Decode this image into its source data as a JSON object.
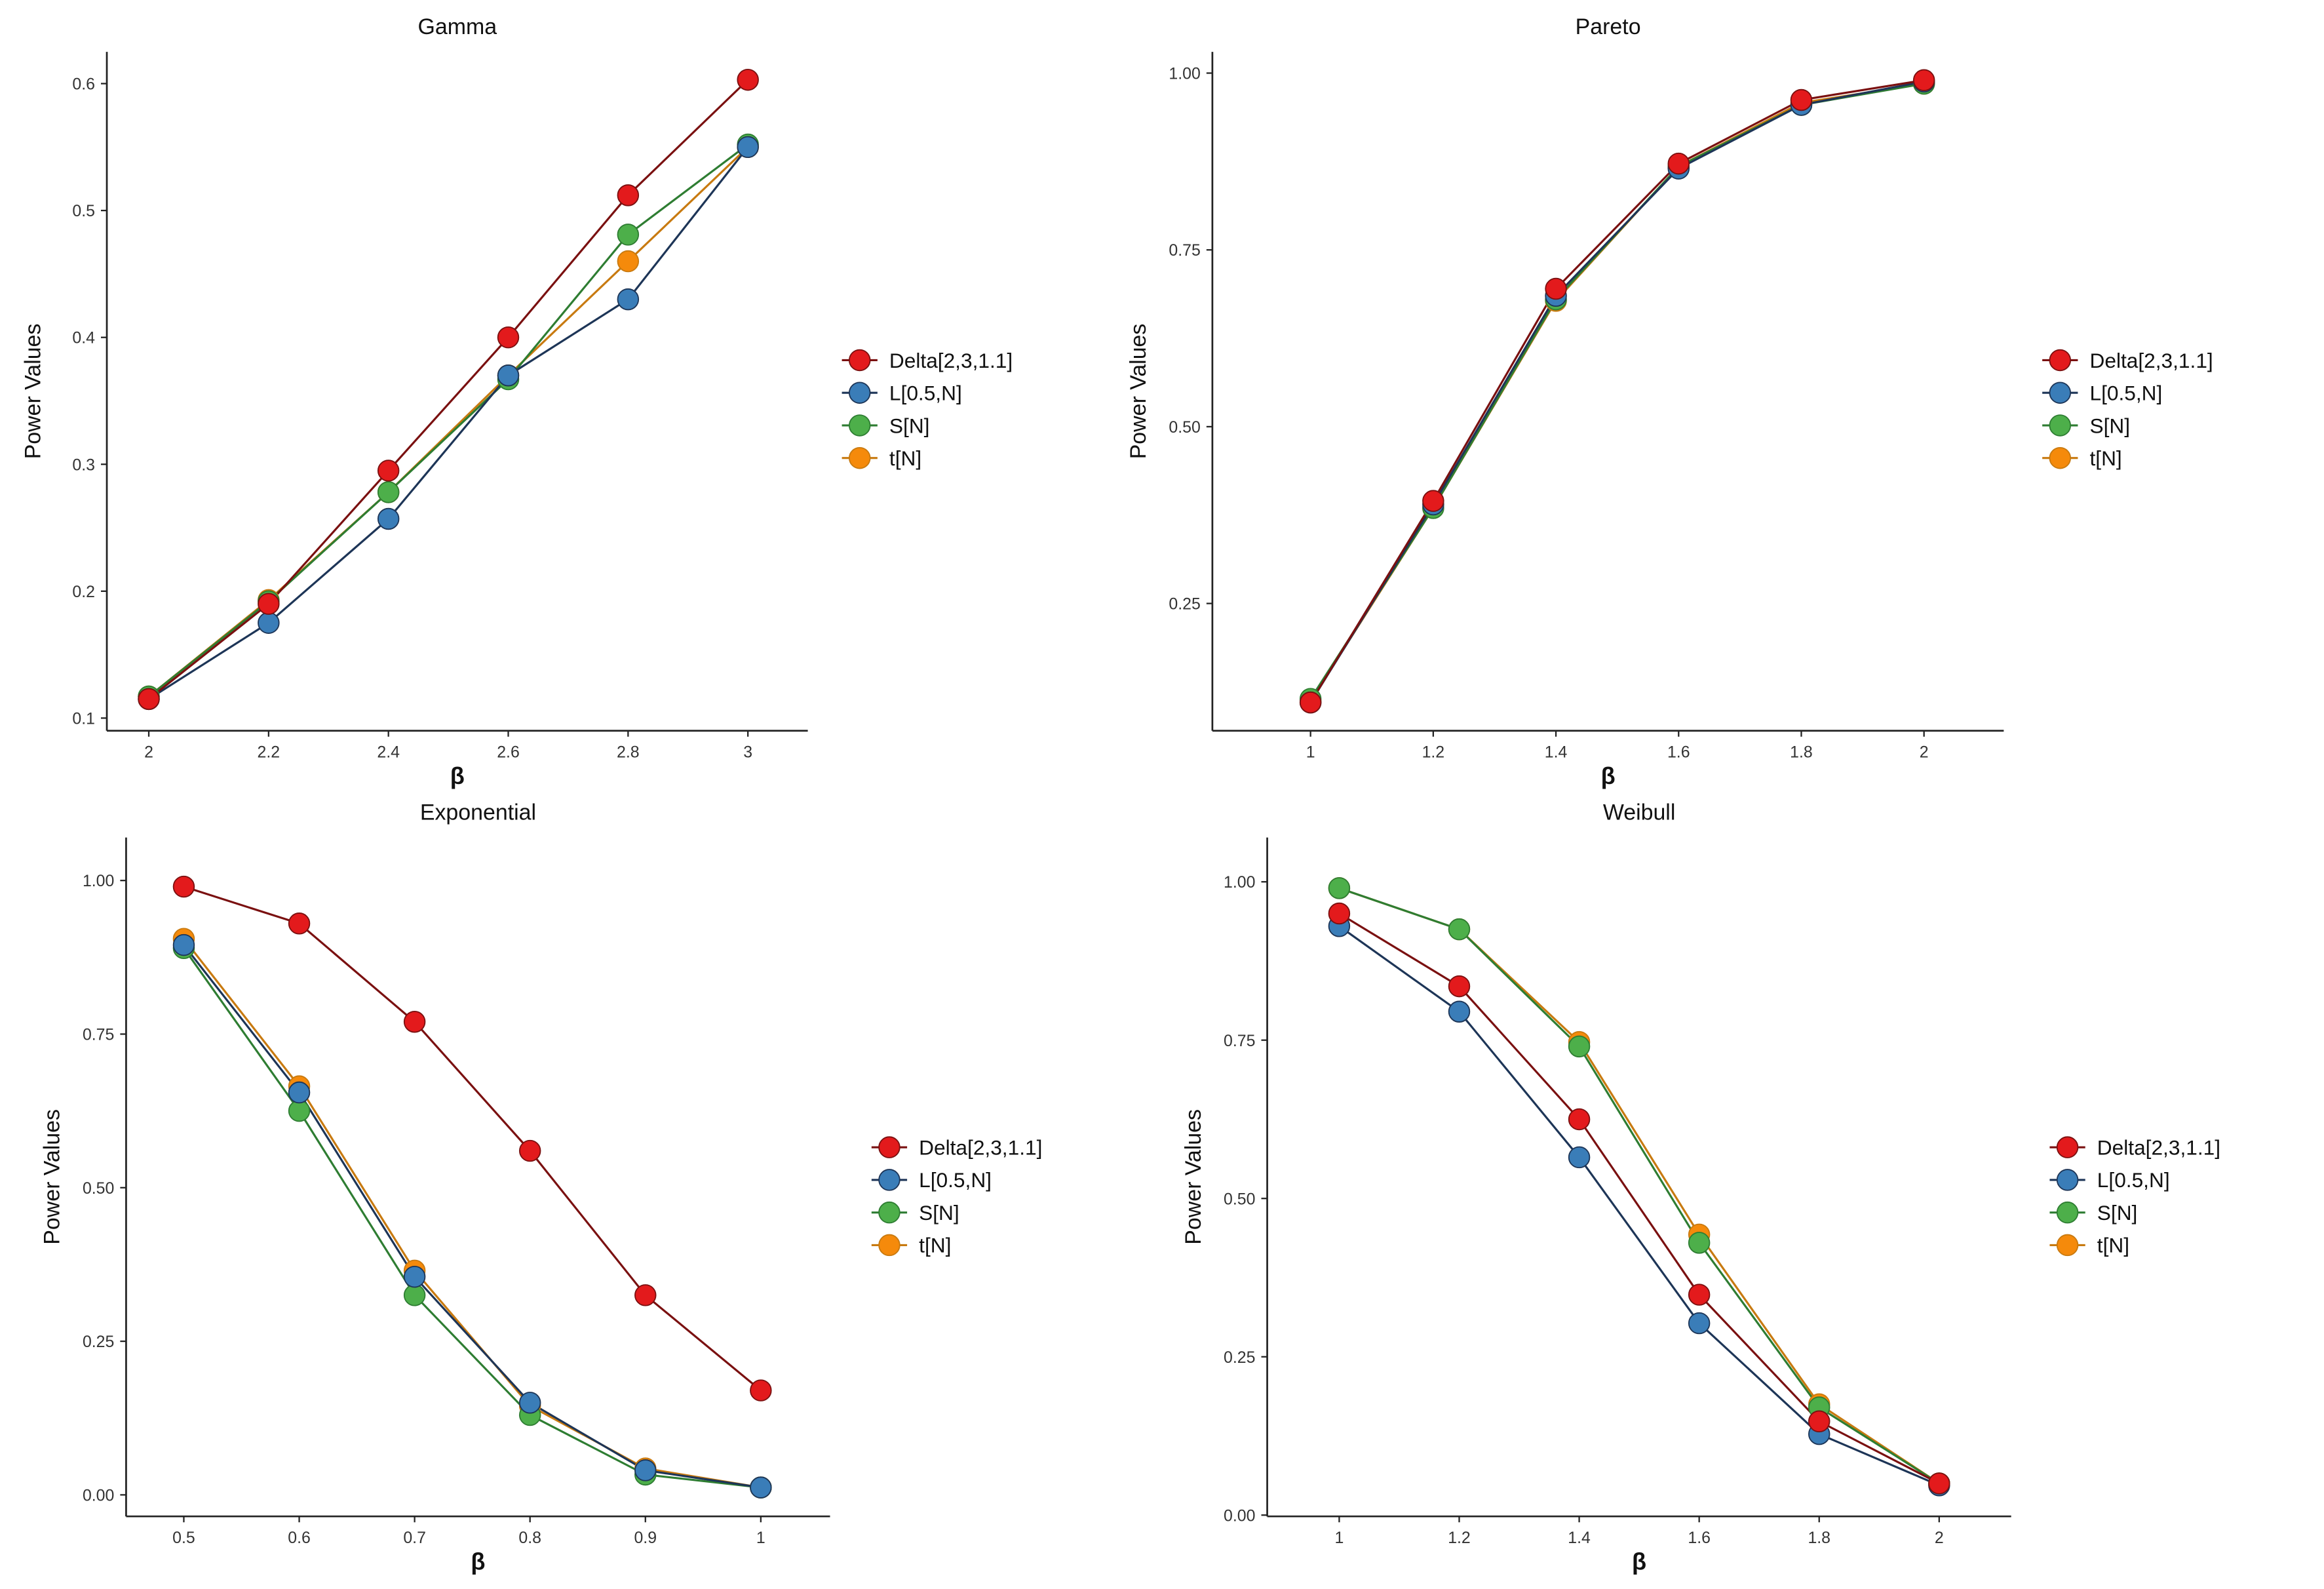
{
  "chart_data": [
    {
      "type": "line",
      "title": "Gamma",
      "xlabel": "β",
      "ylabel": "Power Values",
      "x": [
        2,
        2.2,
        2.4,
        2.6,
        2.8,
        3
      ],
      "xticks": [
        "2",
        "2.2",
        "2.4",
        "2.6",
        "2.8",
        "3"
      ],
      "yticks": [
        "0.1",
        "0.2",
        "0.3",
        "0.4",
        "0.5",
        "0.6"
      ],
      "ytick_values": [
        0.1,
        0.2,
        0.3,
        0.4,
        0.5,
        0.6
      ],
      "xlim": [
        1.93,
        3.1
      ],
      "ylim": [
        0.09,
        0.625
      ],
      "series": [
        {
          "name": "Delta[2,3,1.1]",
          "values": [
            0.115,
            0.19,
            0.295,
            0.4,
            0.512,
            0.603
          ]
        },
        {
          "name": "L[0.5,N]",
          "values": [
            0.115,
            0.175,
            0.257,
            0.37,
            0.43,
            0.55
          ]
        },
        {
          "name": "S[N]",
          "values": [
            0.117,
            0.192,
            0.278,
            0.367,
            0.481,
            0.552
          ]
        },
        {
          "name": "t[N]",
          "values": [
            0.117,
            0.193,
            0.278,
            0.37,
            0.46,
            0.55
          ]
        }
      ],
      "legend": "right"
    },
    {
      "type": "line",
      "title": "Pareto",
      "xlabel": "β",
      "ylabel": "Power Values",
      "x": [
        1,
        1.2,
        1.4,
        1.6,
        1.8,
        2
      ],
      "xticks": [
        "1",
        "1.2",
        "1.4",
        "1.6",
        "1.8",
        "2"
      ],
      "yticks": [
        "0.25",
        "0.50",
        "0.75",
        "1.00"
      ],
      "ytick_values": [
        0.25,
        0.5,
        0.75,
        1.0
      ],
      "xlim": [
        0.84,
        2.13
      ],
      "ylim": [
        0.07,
        1.03
      ],
      "series": [
        {
          "name": "Delta[2,3,1.1]",
          "values": [
            0.11,
            0.395,
            0.695,
            0.872,
            0.962,
            0.99
          ]
        },
        {
          "name": "L[0.5,N]",
          "values": [
            0.11,
            0.39,
            0.685,
            0.865,
            0.955,
            0.988
          ]
        },
        {
          "name": "S[N]",
          "values": [
            0.115,
            0.385,
            0.68,
            0.868,
            0.955,
            0.985
          ]
        },
        {
          "name": "t[N]",
          "values": [
            0.112,
            0.385,
            0.678,
            0.868,
            0.958,
            0.985
          ]
        }
      ],
      "legend": "right"
    },
    {
      "type": "line",
      "title": "Exponential",
      "xlabel": "β",
      "ylabel": "Power Values",
      "x": [
        0.5,
        0.6,
        0.7,
        0.8,
        0.9,
        1
      ],
      "xticks": [
        "0.5",
        "0.6",
        "0.7",
        "0.8",
        "0.9",
        "1"
      ],
      "yticks": [
        "0.00",
        "0.25",
        "0.50",
        "0.75",
        "1.00"
      ],
      "ytick_values": [
        0,
        0.25,
        0.5,
        0.75,
        1.0
      ],
      "xlim": [
        0.45,
        1.06
      ],
      "ylim": [
        -0.035,
        1.07
      ],
      "series": [
        {
          "name": "Delta[2,3,1.1]",
          "values": [
            0.99,
            0.93,
            0.77,
            0.56,
            0.325,
            0.17
          ]
        },
        {
          "name": "L[0.5,N]",
          "values": [
            0.895,
            0.655,
            0.355,
            0.15,
            0.04,
            0.012
          ]
        },
        {
          "name": "S[N]",
          "values": [
            0.89,
            0.625,
            0.325,
            0.13,
            0.033,
            0.012
          ]
        },
        {
          "name": "t[N]",
          "values": [
            0.905,
            0.665,
            0.365,
            0.145,
            0.043,
            0.012
          ]
        }
      ],
      "legend": "right"
    },
    {
      "type": "line",
      "title": "Weibull",
      "xlabel": "β",
      "ylabel": "Power Values",
      "x": [
        1,
        1.2,
        1.4,
        1.6,
        1.8,
        2
      ],
      "xticks": [
        "1",
        "1.2",
        "1.4",
        "1.6",
        "1.8",
        "2"
      ],
      "yticks": [
        "0.00",
        "0.25",
        "0.50",
        "0.75",
        "1.00"
      ],
      "ytick_values": [
        0,
        0.25,
        0.5,
        0.75,
        1.0
      ],
      "xlim": [
        0.88,
        2.12
      ],
      "ylim": [
        -0.002,
        1.07
      ],
      "series": [
        {
          "name": "Delta[2,3,1.1]",
          "values": [
            0.95,
            0.835,
            0.625,
            0.348,
            0.148,
            0.05
          ]
        },
        {
          "name": "L[0.5,N]",
          "values": [
            0.93,
            0.795,
            0.565,
            0.303,
            0.128,
            0.047
          ]
        },
        {
          "name": "S[N]",
          "values": [
            0.99,
            0.925,
            0.74,
            0.43,
            0.17,
            0.05
          ]
        },
        {
          "name": "t[N]",
          "values": [
            0.99,
            0.925,
            0.747,
            0.443,
            0.175,
            0.05
          ]
        }
      ],
      "legend": "right"
    }
  ],
  "colors": {
    "marker": [
      "#e31a1c",
      "#3a7db8",
      "#4daf4a",
      "#f58a0b"
    ],
    "line": [
      "#7a1010",
      "#1d3557",
      "#2e7d32",
      "#c87a10"
    ]
  }
}
